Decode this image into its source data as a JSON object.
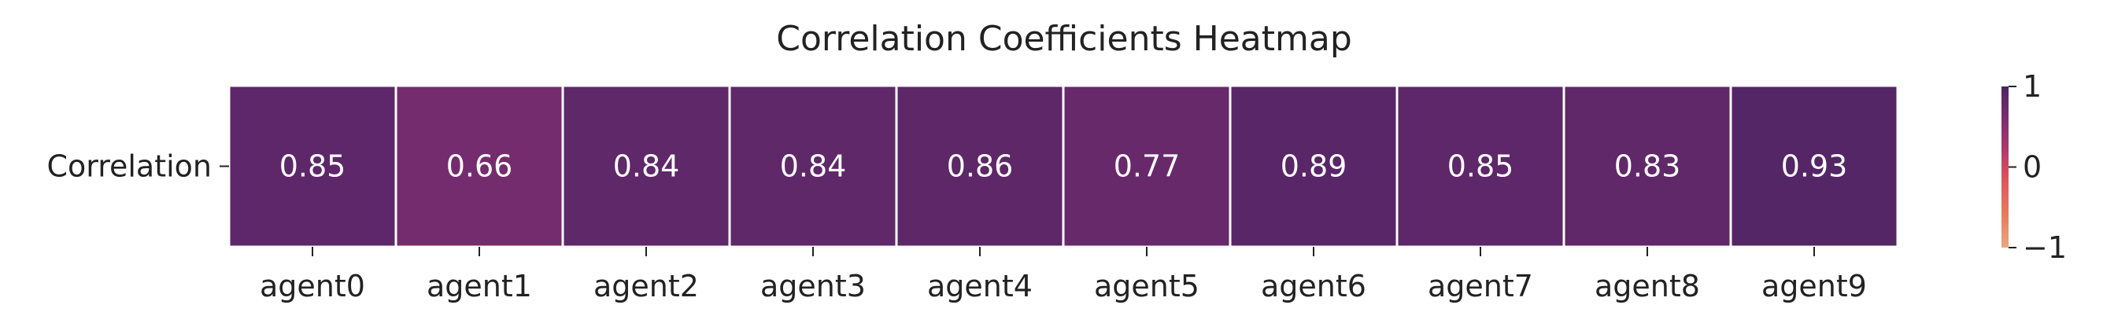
{
  "chart_data": {
    "type": "heatmap",
    "title": "Correlation Coefficients Heatmap",
    "row_labels": [
      "Correlation"
    ],
    "col_labels": [
      "agent0",
      "agent1",
      "agent2",
      "agent3",
      "agent4",
      "agent5",
      "agent6",
      "agent7",
      "agent8",
      "agent9"
    ],
    "values": [
      [
        0.85,
        0.66,
        0.84,
        0.84,
        0.86,
        0.77,
        0.89,
        0.85,
        0.83,
        0.93
      ]
    ],
    "value_labels": [
      "0.85",
      "0.66",
      "0.84",
      "0.84",
      "0.86",
      "0.77",
      "0.89",
      "0.85",
      "0.83",
      "0.93"
    ],
    "vmin": -1,
    "vmax": 1,
    "colormap": "flare",
    "colorbar_ticks": [
      "1",
      "0",
      "−1"
    ],
    "colorbar_tick_values": [
      1,
      0,
      -1
    ],
    "colors": {
      "cell_text": "#ffffff",
      "cell_border": "#ffffff",
      "text": "#222222"
    }
  }
}
